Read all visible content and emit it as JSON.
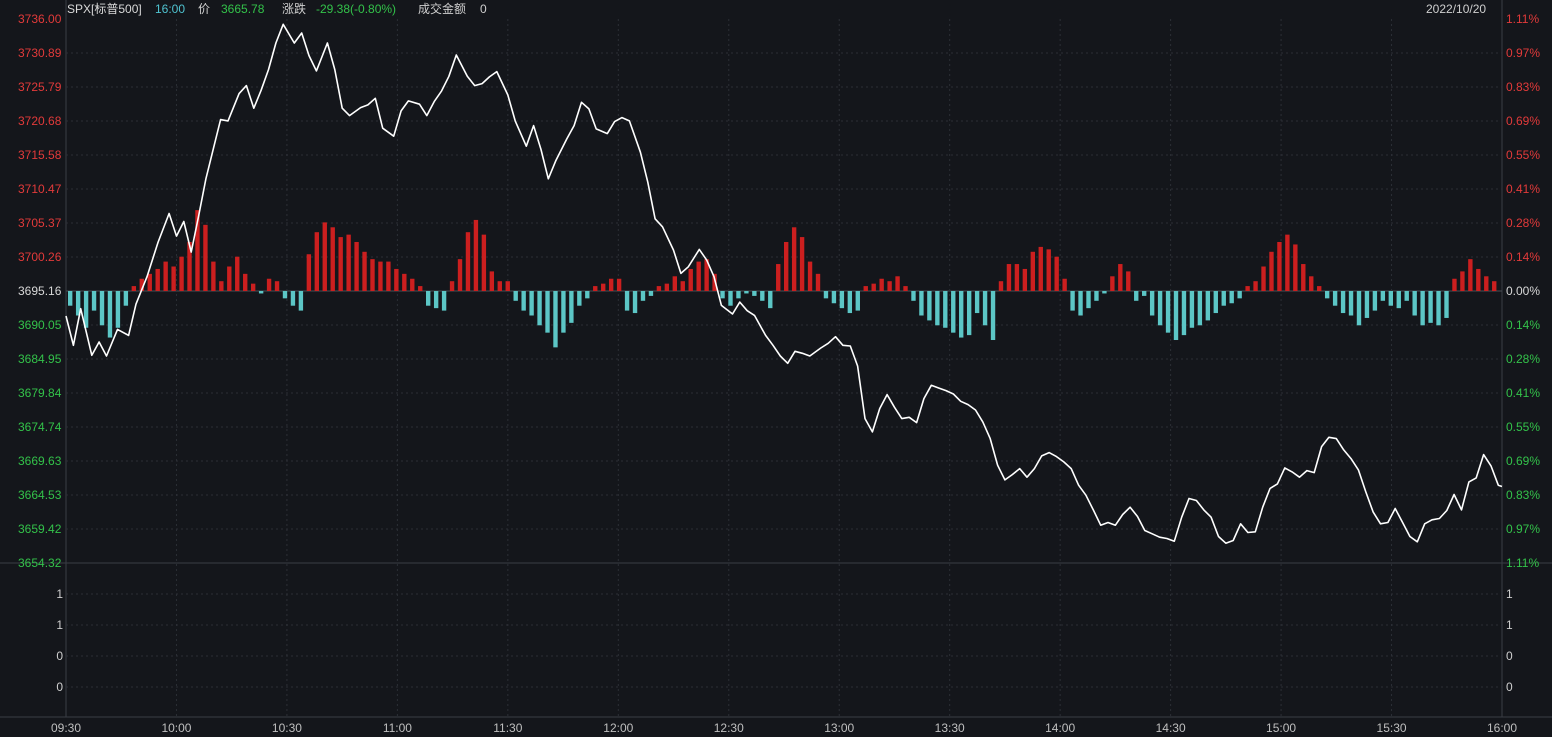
{
  "header": {
    "symbol": "SPX[标普500]",
    "time": "16:00",
    "price_label": "价",
    "price": "3665.78",
    "change_label": "涨跌",
    "change": "-29.38(-0.80%)",
    "turnover_label": "成交金额",
    "turnover": "0",
    "date": "2022/10/20"
  },
  "colors": {
    "background": "#14161b",
    "up": "#cc1f1f",
    "down": "#5cc6c6",
    "price_line": "#ffffff",
    "up_text": "#e23a3a",
    "down_text": "#33c24a",
    "neutral_text": "#d8d8d8"
  },
  "chart_data": {
    "type": "line",
    "title": "SPX[标普500]",
    "date": "2022/10/20",
    "prev_close": 3695.16,
    "ylim": [
      3654.32,
      3736.0
    ],
    "grid": true,
    "y_ticks_left": [
      "3736.00",
      "3730.89",
      "3725.79",
      "3720.68",
      "3715.58",
      "3710.47",
      "3705.37",
      "3700.26",
      "3695.16",
      "3690.05",
      "3684.95",
      "3679.84",
      "3674.74",
      "3669.63",
      "3664.53",
      "3659.42",
      "3654.32"
    ],
    "y_ticks_right": [
      "1.11%",
      "0.97%",
      "0.83%",
      "0.69%",
      "0.55%",
      "0.41%",
      "0.28%",
      "0.14%",
      "0.00%",
      "0.14%",
      "0.28%",
      "0.41%",
      "0.55%",
      "0.69%",
      "0.83%",
      "0.97%",
      "1.11%"
    ],
    "x_ticks": [
      "09:30",
      "10:00",
      "10:30",
      "11:00",
      "11:30",
      "12:00",
      "12:30",
      "13:00",
      "13:30",
      "14:00",
      "14:30",
      "15:00",
      "15:30",
      "16:00"
    ],
    "sub_panel_ticks": [
      "1",
      "1",
      "0",
      "0"
    ],
    "price_series": {
      "name": "SPX",
      "points": [
        [
          "09:30",
          3691.4
        ],
        [
          "09:32",
          3687.0
        ],
        [
          "09:34",
          3692.5
        ],
        [
          "09:37",
          3685.5
        ],
        [
          "09:39",
          3687.5
        ],
        [
          "09:41",
          3685.4
        ],
        [
          "09:44",
          3689.4
        ],
        [
          "09:47",
          3688.5
        ],
        [
          "09:49",
          3693.2
        ],
        [
          "09:52",
          3697.3
        ],
        [
          "09:55",
          3702.5
        ],
        [
          "09:58",
          3706.8
        ],
        [
          "10:00",
          3703.4
        ],
        [
          "10:02",
          3705.6
        ],
        [
          "10:04",
          3701.0
        ],
        [
          "10:06",
          3706.4
        ],
        [
          "10:08",
          3712.0
        ],
        [
          "10:10",
          3716.5
        ],
        [
          "10:12",
          3720.9
        ],
        [
          "10:14",
          3720.7
        ],
        [
          "10:17",
          3724.8
        ],
        [
          "10:19",
          3726.0
        ],
        [
          "10:21",
          3722.6
        ],
        [
          "10:23",
          3725.3
        ],
        [
          "10:25",
          3728.4
        ],
        [
          "10:27",
          3732.4
        ],
        [
          "10:29",
          3735.2
        ],
        [
          "10:32",
          3732.4
        ],
        [
          "10:34",
          3733.9
        ],
        [
          "10:36",
          3730.5
        ],
        [
          "10:38",
          3728.2
        ],
        [
          "10:41",
          3732.4
        ],
        [
          "10:43",
          3728.4
        ],
        [
          "10:45",
          3722.6
        ],
        [
          "10:47",
          3721.5
        ],
        [
          "10:50",
          3722.7
        ],
        [
          "10:52",
          3723.1
        ],
        [
          "10:54",
          3724.1
        ],
        [
          "10:56",
          3719.6
        ],
        [
          "10:59",
          3718.4
        ],
        [
          "11:01",
          3722.2
        ],
        [
          "11:03",
          3723.7
        ],
        [
          "11:06",
          3723.2
        ],
        [
          "11:08",
          3721.5
        ],
        [
          "11:10",
          3723.6
        ],
        [
          "11:12",
          3725.2
        ],
        [
          "11:14",
          3727.4
        ],
        [
          "11:16",
          3730.6
        ],
        [
          "11:19",
          3727.4
        ],
        [
          "11:21",
          3726.0
        ],
        [
          "11:23",
          3726.3
        ],
        [
          "11:25",
          3727.3
        ],
        [
          "11:27",
          3728.1
        ],
        [
          "11:30",
          3724.6
        ],
        [
          "11:32",
          3720.7
        ],
        [
          "11:35",
          3716.9
        ],
        [
          "11:37",
          3720.0
        ],
        [
          "11:39",
          3716.4
        ],
        [
          "11:41",
          3712.0
        ],
        [
          "11:43",
          3714.7
        ],
        [
          "11:46",
          3718.0
        ],
        [
          "11:48",
          3720.0
        ],
        [
          "11:50",
          3723.5
        ],
        [
          "11:52",
          3722.5
        ],
        [
          "11:54",
          3719.5
        ],
        [
          "11:57",
          3718.8
        ],
        [
          "11:59",
          3720.6
        ],
        [
          "12:01",
          3721.2
        ],
        [
          "12:03",
          3720.7
        ],
        [
          "12:06",
          3716.0
        ],
        [
          "12:08",
          3711.5
        ],
        [
          "12:10",
          3706.0
        ],
        [
          "12:12",
          3704.8
        ],
        [
          "12:15",
          3701.3
        ],
        [
          "12:17",
          3697.8
        ],
        [
          "12:19",
          3698.8
        ],
        [
          "12:22",
          3701.4
        ],
        [
          "12:24",
          3699.8
        ],
        [
          "12:26",
          3697.3
        ],
        [
          "12:28",
          3693.0
        ],
        [
          "12:31",
          3691.7
        ],
        [
          "12:33",
          3693.5
        ],
        [
          "12:35",
          3692.2
        ],
        [
          "12:37",
          3691.5
        ],
        [
          "12:40",
          3688.5
        ],
        [
          "12:42",
          3687.0
        ],
        [
          "12:44",
          3685.4
        ],
        [
          "12:46",
          3684.3
        ],
        [
          "12:48",
          3686.1
        ],
        [
          "12:50",
          3685.8
        ],
        [
          "12:52",
          3685.4
        ],
        [
          "12:55",
          3686.6
        ],
        [
          "12:57",
          3687.3
        ],
        [
          "12:59",
          3688.3
        ],
        [
          "13:01",
          3687.0
        ],
        [
          "13:03",
          3686.9
        ],
        [
          "13:05",
          3683.9
        ],
        [
          "13:07",
          3676.0
        ],
        [
          "13:09",
          3674.0
        ],
        [
          "13:11",
          3677.5
        ],
        [
          "13:13",
          3679.6
        ],
        [
          "13:15",
          3677.7
        ],
        [
          "13:17",
          3676.0
        ],
        [
          "13:19",
          3676.2
        ],
        [
          "13:21",
          3675.4
        ],
        [
          "13:23",
          3679.0
        ],
        [
          "13:25",
          3681.0
        ],
        [
          "13:27",
          3680.6
        ],
        [
          "13:29",
          3680.2
        ],
        [
          "13:31",
          3679.7
        ],
        [
          "13:33",
          3678.6
        ],
        [
          "13:35",
          3678.1
        ],
        [
          "13:37",
          3677.3
        ],
        [
          "13:39",
          3675.5
        ],
        [
          "13:41",
          3673.0
        ],
        [
          "13:43",
          3669.0
        ],
        [
          "13:45",
          3666.8
        ],
        [
          "13:47",
          3667.6
        ],
        [
          "13:49",
          3668.5
        ],
        [
          "13:51",
          3667.2
        ],
        [
          "13:53",
          3668.5
        ],
        [
          "13:55",
          3670.4
        ],
        [
          "13:57",
          3670.9
        ],
        [
          "13:59",
          3670.3
        ],
        [
          "14:01",
          3669.5
        ],
        [
          "14:03",
          3668.5
        ],
        [
          "14:05",
          3666.0
        ],
        [
          "14:07",
          3664.5
        ],
        [
          "14:09",
          3662.3
        ],
        [
          "14:11",
          3660.0
        ],
        [
          "14:13",
          3660.4
        ],
        [
          "14:15",
          3660.0
        ],
        [
          "14:17",
          3661.6
        ],
        [
          "14:19",
          3662.7
        ],
        [
          "14:21",
          3661.3
        ],
        [
          "14:23",
          3659.2
        ],
        [
          "14:25",
          3658.7
        ],
        [
          "14:27",
          3658.2
        ],
        [
          "14:29",
          3658.0
        ],
        [
          "14:31",
          3657.6
        ],
        [
          "14:33",
          3661.2
        ],
        [
          "14:35",
          3664.0
        ],
        [
          "14:37",
          3663.7
        ],
        [
          "14:39",
          3662.3
        ],
        [
          "14:41",
          3661.2
        ],
        [
          "14:43",
          3658.3
        ],
        [
          "14:45",
          3657.3
        ],
        [
          "14:47",
          3657.7
        ],
        [
          "14:49",
          3660.2
        ],
        [
          "14:51",
          3658.9
        ],
        [
          "14:53",
          3659.0
        ],
        [
          "14:55",
          3662.7
        ],
        [
          "14:57",
          3665.5
        ],
        [
          "14:59",
          3666.2
        ],
        [
          "15:01",
          3668.6
        ],
        [
          "15:03",
          3668.0
        ],
        [
          "15:05",
          3667.2
        ],
        [
          "15:07",
          3668.2
        ],
        [
          "15:09",
          3667.9
        ],
        [
          "15:11",
          3671.8
        ],
        [
          "15:13",
          3673.2
        ],
        [
          "15:15",
          3673.0
        ],
        [
          "15:17",
          3671.3
        ],
        [
          "15:19",
          3670.0
        ],
        [
          "15:21",
          3668.3
        ],
        [
          "15:23",
          3665.0
        ],
        [
          "15:25",
          3662.0
        ],
        [
          "15:27",
          3660.2
        ],
        [
          "15:29",
          3660.4
        ],
        [
          "15:31",
          3662.5
        ],
        [
          "15:33",
          3660.4
        ],
        [
          "15:35",
          3658.3
        ],
        [
          "15:37",
          3657.5
        ],
        [
          "15:39",
          3660.2
        ],
        [
          "15:41",
          3660.8
        ],
        [
          "15:43",
          3661.0
        ],
        [
          "15:45",
          3662.2
        ],
        [
          "15:47",
          3664.6
        ],
        [
          "15:49",
          3662.3
        ],
        [
          "15:51",
          3666.5
        ],
        [
          "15:53",
          3667.1
        ],
        [
          "15:55",
          3670.6
        ],
        [
          "15:57",
          3668.9
        ],
        [
          "15:59",
          3666.0
        ],
        [
          "16:00",
          3665.8
        ]
      ]
    },
    "volume_bars_pct": [
      -0.06,
      -0.1,
      -0.15,
      -0.08,
      -0.14,
      -0.19,
      -0.15,
      -0.06,
      0.02,
      0.05,
      0.07,
      0.09,
      0.12,
      0.1,
      0.14,
      0.2,
      0.33,
      0.27,
      0.12,
      0.04,
      0.1,
      0.14,
      0.07,
      0.03,
      -0.01,
      0.05,
      0.04,
      -0.03,
      -0.06,
      -0.08,
      0.15,
      0.24,
      0.28,
      0.26,
      0.22,
      0.23,
      0.2,
      0.16,
      0.13,
      0.12,
      0.12,
      0.09,
      0.07,
      0.05,
      0.02,
      -0.06,
      -0.07,
      -0.08,
      0.04,
      0.13,
      0.24,
      0.29,
      0.23,
      0.08,
      0.04,
      0.04,
      -0.04,
      -0.08,
      -0.1,
      -0.14,
      -0.17,
      -0.23,
      -0.17,
      -0.13,
      -0.06,
      -0.03,
      0.02,
      0.03,
      0.05,
      0.05,
      -0.08,
      -0.09,
      -0.04,
      -0.02,
      0.02,
      0.03,
      0.06,
      0.04,
      0.09,
      0.12,
      0.13,
      0.07,
      -0.03,
      -0.06,
      -0.03,
      -0.01,
      -0.02,
      -0.04,
      -0.07,
      0.11,
      0.2,
      0.26,
      0.22,
      0.12,
      0.07,
      -0.03,
      -0.05,
      -0.07,
      -0.09,
      -0.08,
      0.02,
      0.03,
      0.05,
      0.04,
      0.06,
      0.02,
      -0.04,
      -0.1,
      -0.12,
      -0.14,
      -0.15,
      -0.17,
      -0.19,
      -0.18,
      -0.09,
      -0.14,
      -0.2,
      0.04,
      0.11,
      0.11,
      0.09,
      0.16,
      0.18,
      0.17,
      0.14,
      0.05,
      -0.08,
      -0.1,
      -0.07,
      -0.04,
      -0.01,
      0.06,
      0.11,
      0.08,
      -0.04,
      -0.02,
      -0.1,
      -0.14,
      -0.17,
      -0.2,
      -0.18,
      -0.15,
      -0.14,
      -0.12,
      -0.09,
      -0.06,
      -0.05,
      -0.03,
      0.02,
      0.04,
      0.1,
      0.16,
      0.2,
      0.23,
      0.19,
      0.11,
      0.06,
      0.02,
      -0.03,
      -0.06,
      -0.09,
      -0.1,
      -0.14,
      -0.11,
      -0.08,
      -0.04,
      -0.06,
      -0.07,
      -0.04,
      -0.1,
      -0.14,
      -0.13,
      -0.14,
      -0.11,
      0.05,
      0.08,
      0.13,
      0.09,
      0.06,
      0.04
    ]
  }
}
